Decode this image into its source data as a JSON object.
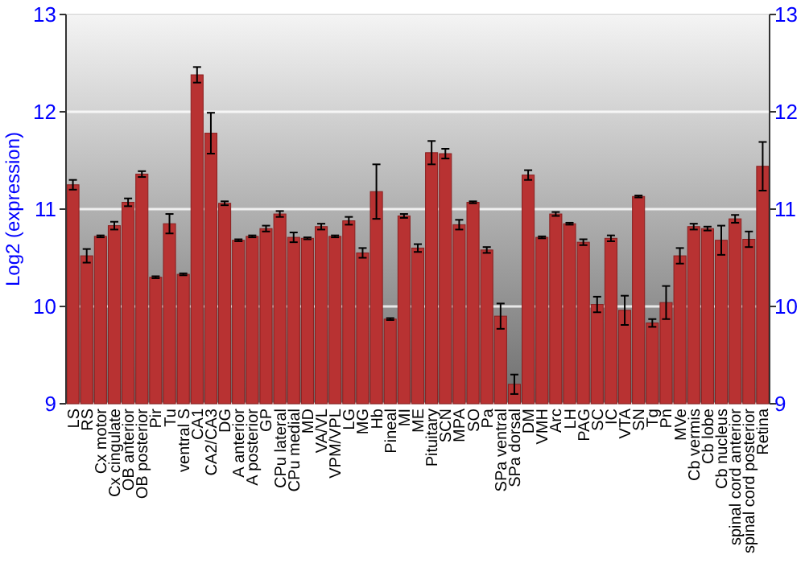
{
  "chart_data": {
    "type": "bar",
    "ylabel": "Log2 (expression)",
    "categories": [
      "LS",
      "RS",
      "Cx motor",
      "Cx cingulate",
      "OB anterior",
      "OB posterior",
      "Pir",
      "Tu",
      "ventral S",
      "CA1",
      "CA2/CA3",
      "DG",
      "A anterior",
      "A posterior",
      "GP",
      "CPu lateral",
      "CPu medial",
      "MD",
      "VA/VL",
      "VPM/VPL",
      "LG",
      "MG",
      "Hb",
      "Pineal",
      "MI",
      "ME",
      "Pituitary",
      "SCN",
      "MPA",
      "SO",
      "Pa",
      "SPa ventral",
      "SPa dorsal",
      "DM",
      "VMH",
      "Arc",
      "LH",
      "PAG",
      "SC",
      "IC",
      "VTA",
      "SN",
      "Tg",
      "Pn",
      "MVe",
      "Cb vermis",
      "Cb lobe",
      "Cb nucleus",
      "spinal cord anterior",
      "spinal cord posterior",
      "Retina"
    ],
    "values": [
      11.25,
      10.52,
      10.72,
      10.83,
      11.07,
      11.36,
      10.3,
      10.85,
      10.33,
      12.38,
      11.78,
      11.06,
      10.68,
      10.72,
      10.8,
      10.95,
      10.71,
      10.7,
      10.82,
      10.72,
      10.88,
      10.55,
      11.18,
      9.87,
      10.93,
      10.6,
      11.58,
      11.57,
      10.84,
      11.07,
      10.58,
      9.9,
      9.2,
      11.35,
      10.71,
      10.95,
      10.85,
      10.66,
      10.02,
      10.7,
      9.96,
      11.13,
      9.83,
      10.04,
      10.52,
      10.82,
      10.8,
      10.68,
      10.9,
      10.69,
      11.44
    ],
    "errors": [
      0.05,
      0.07,
      0.01,
      0.04,
      0.04,
      0.03,
      0.01,
      0.1,
      0.01,
      0.08,
      0.21,
      0.02,
      0.01,
      0.01,
      0.03,
      0.03,
      0.05,
      0.01,
      0.03,
      0.01,
      0.04,
      0.05,
      0.28,
      0.01,
      0.02,
      0.04,
      0.12,
      0.05,
      0.05,
      0.01,
      0.03,
      0.13,
      0.1,
      0.05,
      0.01,
      0.02,
      0.01,
      0.03,
      0.08,
      0.03,
      0.15,
      0.01,
      0.04,
      0.17,
      0.08,
      0.03,
      0.02,
      0.15,
      0.04,
      0.08,
      0.25
    ],
    "color": "#b83232",
    "ylim": [
      9,
      13
    ],
    "yticks": [
      9,
      10,
      11,
      12,
      13
    ],
    "y2lim": [
      9,
      13
    ],
    "y2ticks": [
      9,
      10,
      11,
      12,
      13
    ],
    "grid": "y"
  }
}
